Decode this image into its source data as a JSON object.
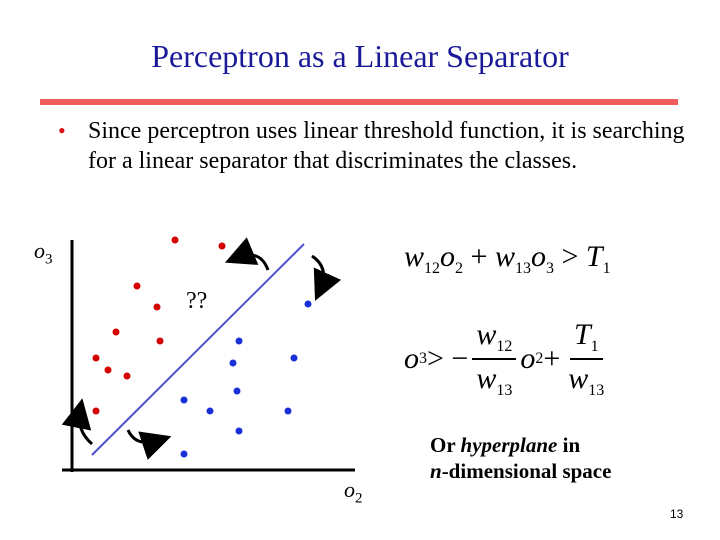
{
  "slide": {
    "title": "Perceptron as a Linear Separator",
    "bullet": "Since perceptron uses linear threshold function, it is searching for a linear separator that discriminates the classes.",
    "page_number": "13"
  },
  "plot": {
    "y_axis_label": "o",
    "y_axis_sub": "3",
    "x_axis_label": "o",
    "x_axis_sub": "2",
    "unknown_marker": "??",
    "red_color": "#d40000",
    "blue_color": "#1a2fd8",
    "line_color": "#4f4fd0"
  },
  "equations": {
    "eq1": {
      "w1": "w",
      "w1_sub": "12",
      "o1": "o",
      "o1_sub": "2",
      "plus": " + ",
      "w2": "w",
      "w2_sub": "13",
      "o2": "o",
      "o2_sub": "3",
      "gt": " > ",
      "t": "T",
      "t_sub": "1"
    },
    "eq2": {
      "lhs": "o",
      "lhs_sub": "3",
      "gt_minus": " > −",
      "frac1_num": "w",
      "frac1_num_sub": "12",
      "frac1_den": "w",
      "frac1_den_sub": "13",
      "o": "o",
      "o_sub": "2",
      "plus": " + ",
      "frac2_num": "T",
      "frac2_num_sub": "1",
      "frac2_den": "w",
      "frac2_den_sub": "13"
    }
  },
  "note": {
    "line1_prefix": "Or ",
    "line1_italic": "hyperplane",
    "line1_suffix": " in",
    "line2_italic": "n",
    "line2_suffix": "-dimensional space"
  }
}
